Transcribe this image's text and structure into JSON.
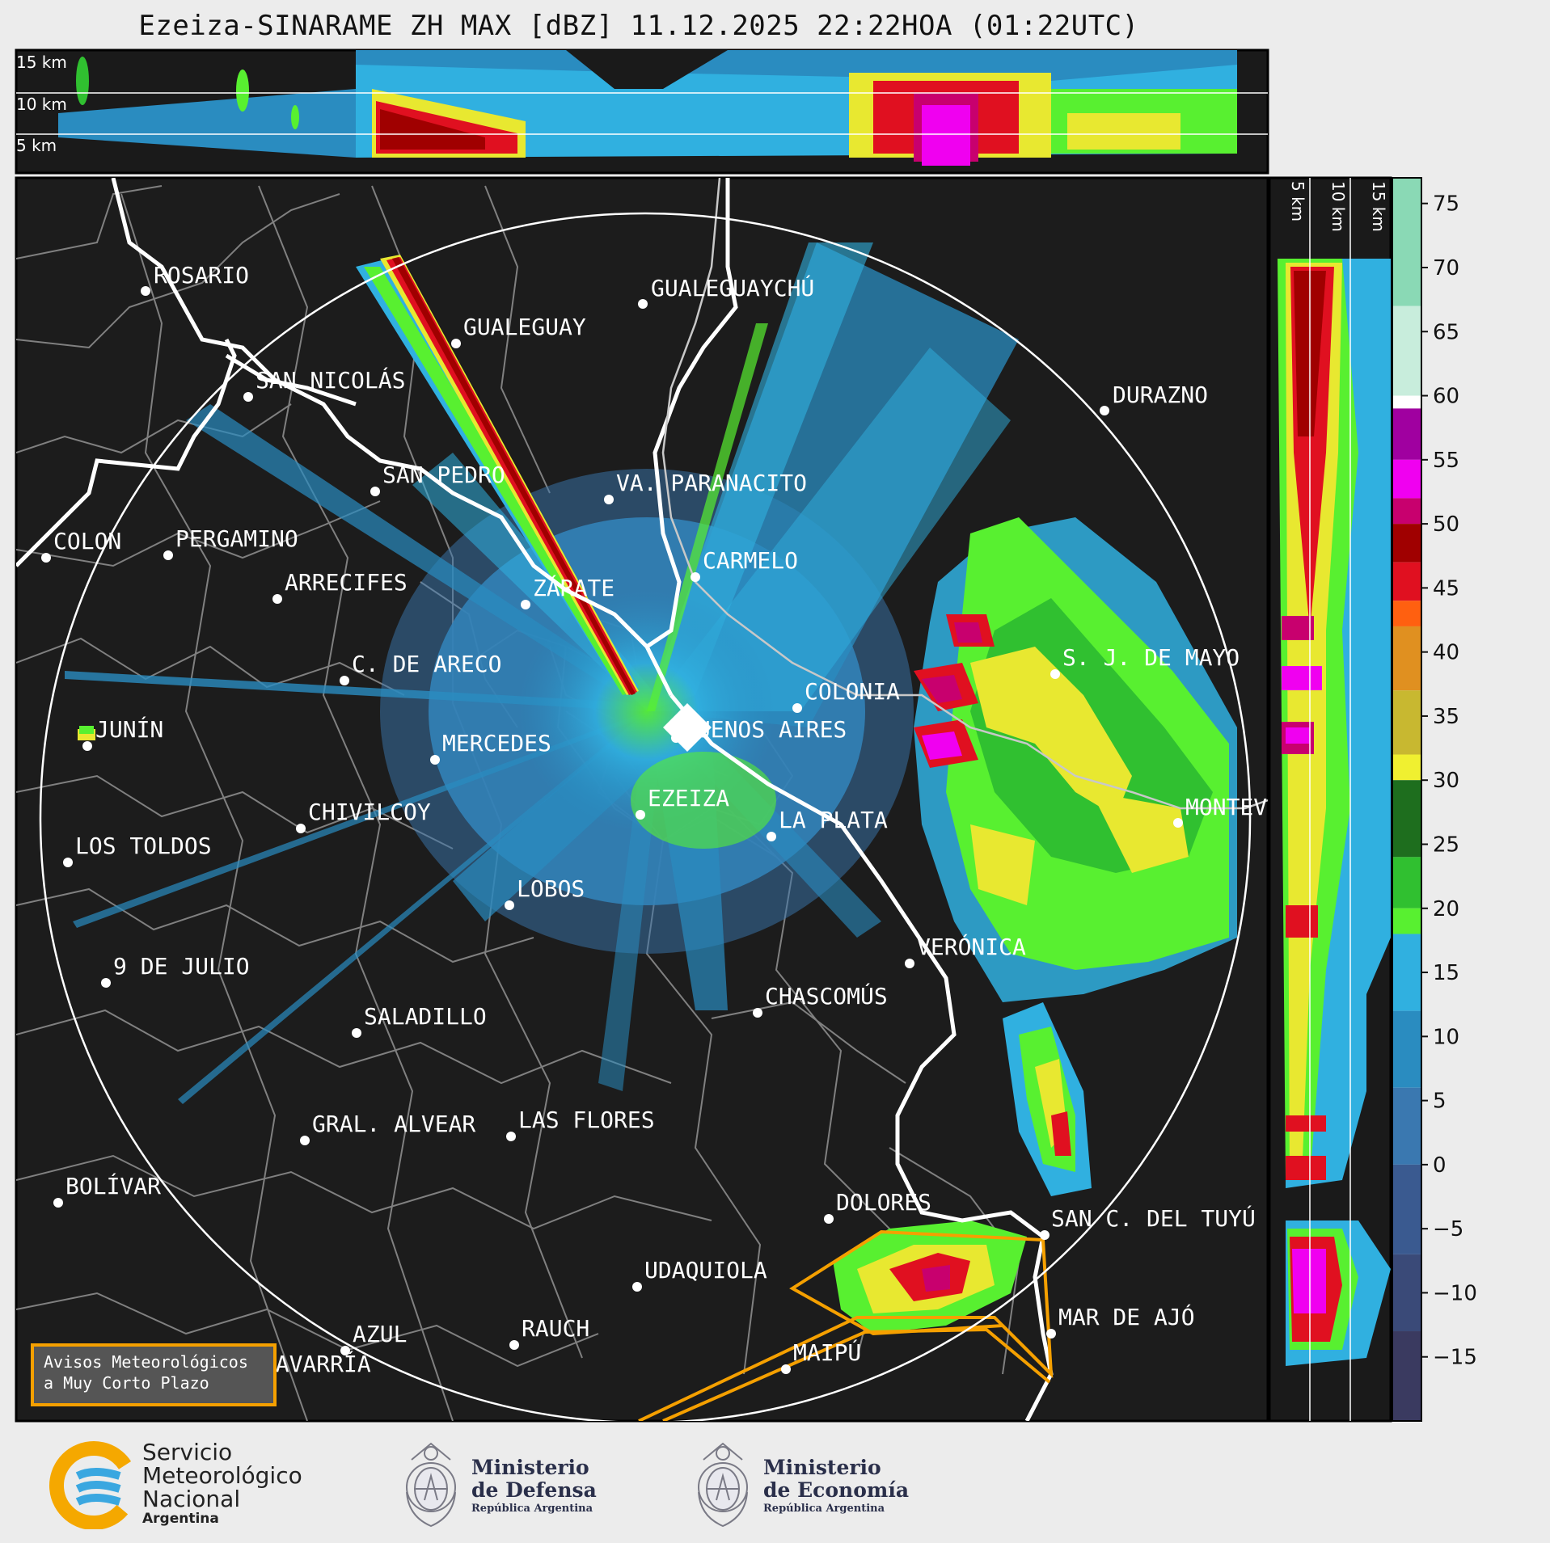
{
  "title": "Ezeiza-SINARAME ZH MAX [dBZ] 11.12.2025 22:22HOA (01:22UTC)",
  "top_panel_labels": [
    "15 km",
    "10 km",
    "5 km"
  ],
  "side_panel_labels": [
    "5 km",
    "10 km",
    "15 km"
  ],
  "cities": [
    {
      "name": "ROSARIO"
    },
    {
      "name": "GUALEGUAYCHÚ"
    },
    {
      "name": "GUALEGUAY"
    },
    {
      "name": "SAN NICOLÁS"
    },
    {
      "name": "DURAZNO"
    },
    {
      "name": "SAN PEDRO"
    },
    {
      "name": "VA. PARANACITO"
    },
    {
      "name": "COLON"
    },
    {
      "name": "PERGAMINO"
    },
    {
      "name": "CARMELO"
    },
    {
      "name": "ARRECIFES"
    },
    {
      "name": "ZÁRATE"
    },
    {
      "name": "S. J. DE MAYO"
    },
    {
      "name": "C. DE ARECO"
    },
    {
      "name": "COLONIA"
    },
    {
      "name": "JUNÍN"
    },
    {
      "name": "BUENOS AIRES"
    },
    {
      "name": "MERCEDES"
    },
    {
      "name": "EZEIZA"
    },
    {
      "name": "MONTEVIDEO"
    },
    {
      "name": "CHIVILCOY"
    },
    {
      "name": "LA PLATA"
    },
    {
      "name": "LOS TOLDOS"
    },
    {
      "name": "LOBOS"
    },
    {
      "name": "VERÓNICA"
    },
    {
      "name": "9 DE JULIO"
    },
    {
      "name": "CHASCOMÚS"
    },
    {
      "name": "SALADILLO"
    },
    {
      "name": "GRAL. ALVEAR"
    },
    {
      "name": "LAS FLORES"
    },
    {
      "name": "BOLÍVAR"
    },
    {
      "name": "DOLORES"
    },
    {
      "name": "SAN C. DEL TUYÚ"
    },
    {
      "name": "UDAQUIOLA"
    },
    {
      "name": "MAR DE AJÓ"
    },
    {
      "name": "AZUL"
    },
    {
      "name": "RAUCH"
    },
    {
      "name": "OLAVARRÍA"
    },
    {
      "name": "MAIPÚ"
    }
  ],
  "colorbar": {
    "unit": "dBZ",
    "ticks": [
      "75",
      "70",
      "65",
      "60",
      "55",
      "50",
      "45",
      "40",
      "35",
      "30",
      "25",
      "20",
      "15",
      "10",
      "5",
      "0",
      "−5",
      "−10",
      "−15"
    ],
    "colors": {
      "v75": "#8ad9b5",
      "v65": "#c8eddc",
      "v60": "#ffffff",
      "v55": "#a000a0",
      "v52": "#f000f0",
      "v50": "#c8006e",
      "v47": "#a00000",
      "v45": "#e01020",
      "v42": "#ff6010",
      "v40": "#e09020",
      "v35": "#c8b830",
      "v30": "#f0f030",
      "v27": "#1e6e1e",
      "v22": "#30c030",
      "v20": "#58f030",
      "v17": "#30b0e0",
      "v10": "#2a8cc0",
      "v5": "#3a78b0",
      "v0": "#3a5a90",
      "vm10": "#3a4a78",
      "vm15": "#3a3a60"
    }
  },
  "warning_legend": {
    "line1": "Avisos Meteorológicos",
    "line2": "a Muy Corto Plazo"
  },
  "logos": {
    "smn": {
      "line1": "Servicio",
      "line2": "Meteorológico",
      "line3": "Nacional",
      "line4": "Argentina"
    },
    "defensa": {
      "line1": "Ministerio",
      "line2": "de Defensa",
      "line3": "República Argentina"
    },
    "economia": {
      "line1": "Ministerio",
      "line2": "de Economía",
      "line3": "República Argentina"
    }
  }
}
